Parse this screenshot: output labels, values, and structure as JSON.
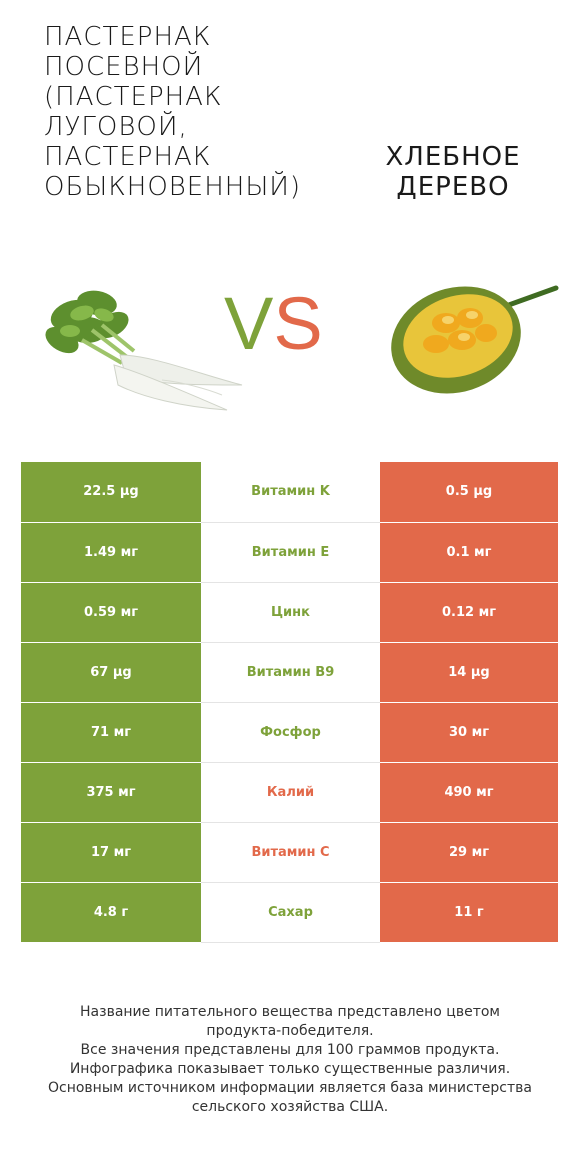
{
  "product_left": {
    "name": "ПАСТЕРНАК ПОСЕВНОЙ (ПАСТЕРНАК ЛУГОВОЙ, ПАСТЕРНАК ОБЫКНОВЕННЫЙ)",
    "lines": [
      "ПАСТЕРНАК",
      "ПОСЕВНОЙ",
      "(ПАСТЕРНАК",
      "ЛУГОВОЙ,",
      "ПАСТЕРНАК",
      "ОБЫКНОВЕННЫЙ)"
    ],
    "color": "#7ea23a",
    "image_icon": "parsnip-image"
  },
  "product_right": {
    "lines": [
      "ХЛЕБНОЕ",
      "ДЕРЕВО"
    ],
    "color": "#e2694a",
    "image_icon": "jackfruit-image"
  },
  "vs": {
    "v": "V",
    "s": "S"
  },
  "rows": [
    {
      "left": "22.5 µg",
      "nutrient": "Витамин K",
      "right": "0.5 µg",
      "winner": "left"
    },
    {
      "left": "1.49 мг",
      "nutrient": "Витамин E",
      "right": "0.1 мг",
      "winner": "left"
    },
    {
      "left": "0.59 мг",
      "nutrient": "Цинк",
      "right": "0.12 мг",
      "winner": "left"
    },
    {
      "left": "67 µg",
      "nutrient": "Витамин B9",
      "right": "14 µg",
      "winner": "left"
    },
    {
      "left": "71 мг",
      "nutrient": "Фосфор",
      "right": "30 мг",
      "winner": "left"
    },
    {
      "left": "375 мг",
      "nutrient": "Калий",
      "right": "490 мг",
      "winner": "right"
    },
    {
      "left": "17 мг",
      "nutrient": "Витамин C",
      "right": "29 мг",
      "winner": "right"
    },
    {
      "left": "4.8 г",
      "nutrient": "Сахар",
      "right": "11 г",
      "winner": "left"
    }
  ],
  "footer": {
    "lines": [
      "Название питательного вещества представлено цветом",
      "продукта-победителя.",
      "Все значения представлены для 100 граммов продукта.",
      "Инфографика показывает только существенные различия.",
      "Основным источником информации является база министерства",
      "сельского хозяйства США."
    ]
  }
}
